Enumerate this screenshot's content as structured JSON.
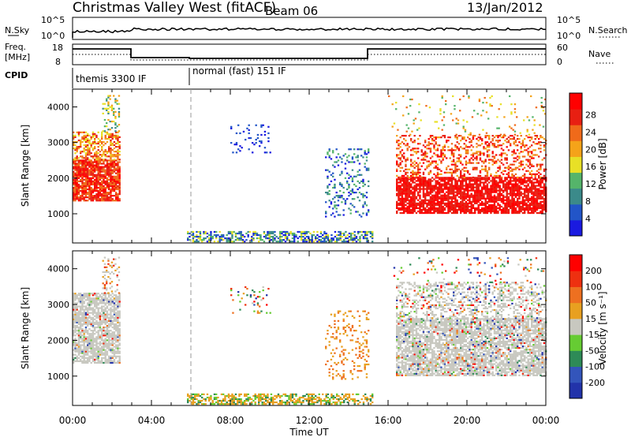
{
  "header": {
    "title": "Christmas Valley West (fitACF)",
    "beam": "Beam 06",
    "date": "13/Jan/2012"
  },
  "top_panels": {
    "nsky_label": "N.Sky",
    "nsearch_label": "N.Search",
    "nsky_scale_top": "10^5",
    "nsky_scale_bottom": "10^0",
    "freq_label_line1": "Freq.",
    "freq_label_line2": "[MHz]",
    "freq_scale_top": "18",
    "freq_scale_bottom": "8",
    "nave_label": "Nave",
    "nave_scale_top": "60",
    "nave_scale_bottom": "0",
    "cpid_label": "CPID",
    "cpid_segments": [
      "themis 3300 IF",
      "normal (fast) 151 IF"
    ]
  },
  "chart_data": [
    {
      "type": "heatmap",
      "name": "power",
      "ylabel": "Slant Range [km]",
      "yticks": [
        1000,
        2000,
        3000,
        4000
      ],
      "ylim": [
        180,
        4500
      ],
      "xlim": [
        "00:00",
        "24:00"
      ],
      "colorbar_label": "Power [dB]",
      "colorbar_ticks": [
        "4",
        "8",
        "12",
        "16",
        "20",
        "24",
        "28"
      ],
      "colorscale": [
        "#1a1ae0",
        "#2255c8",
        "#3b8a8a",
        "#55b46a",
        "#e8e026",
        "#f5a319",
        "#f06a1a",
        "#e81f12",
        "#ff0000"
      ]
    },
    {
      "type": "heatmap",
      "name": "velocity",
      "ylabel": "Slant Range [km]",
      "yticks": [
        1000,
        2000,
        3000,
        4000
      ],
      "ylim": [
        180,
        4500
      ],
      "xlim": [
        "00:00",
        "24:00"
      ],
      "xticks": [
        "00:00",
        "04:00",
        "08:00",
        "12:00",
        "16:00",
        "20:00",
        "00:00"
      ],
      "xlabel": "Time UT",
      "colorbar_label": "Velocity [m s⁻¹]",
      "colorbar_ticks": [
        "200",
        "100",
        "50",
        "15",
        "-15",
        "-50",
        "-100",
        "-200"
      ],
      "colorscale": [
        "#2233aa",
        "#3355bb",
        "#2e8b57",
        "#66cc33",
        "#c8c8c0",
        "#e8a020",
        "#ee7020",
        "#ee3010",
        "#ff0000"
      ]
    }
  ]
}
